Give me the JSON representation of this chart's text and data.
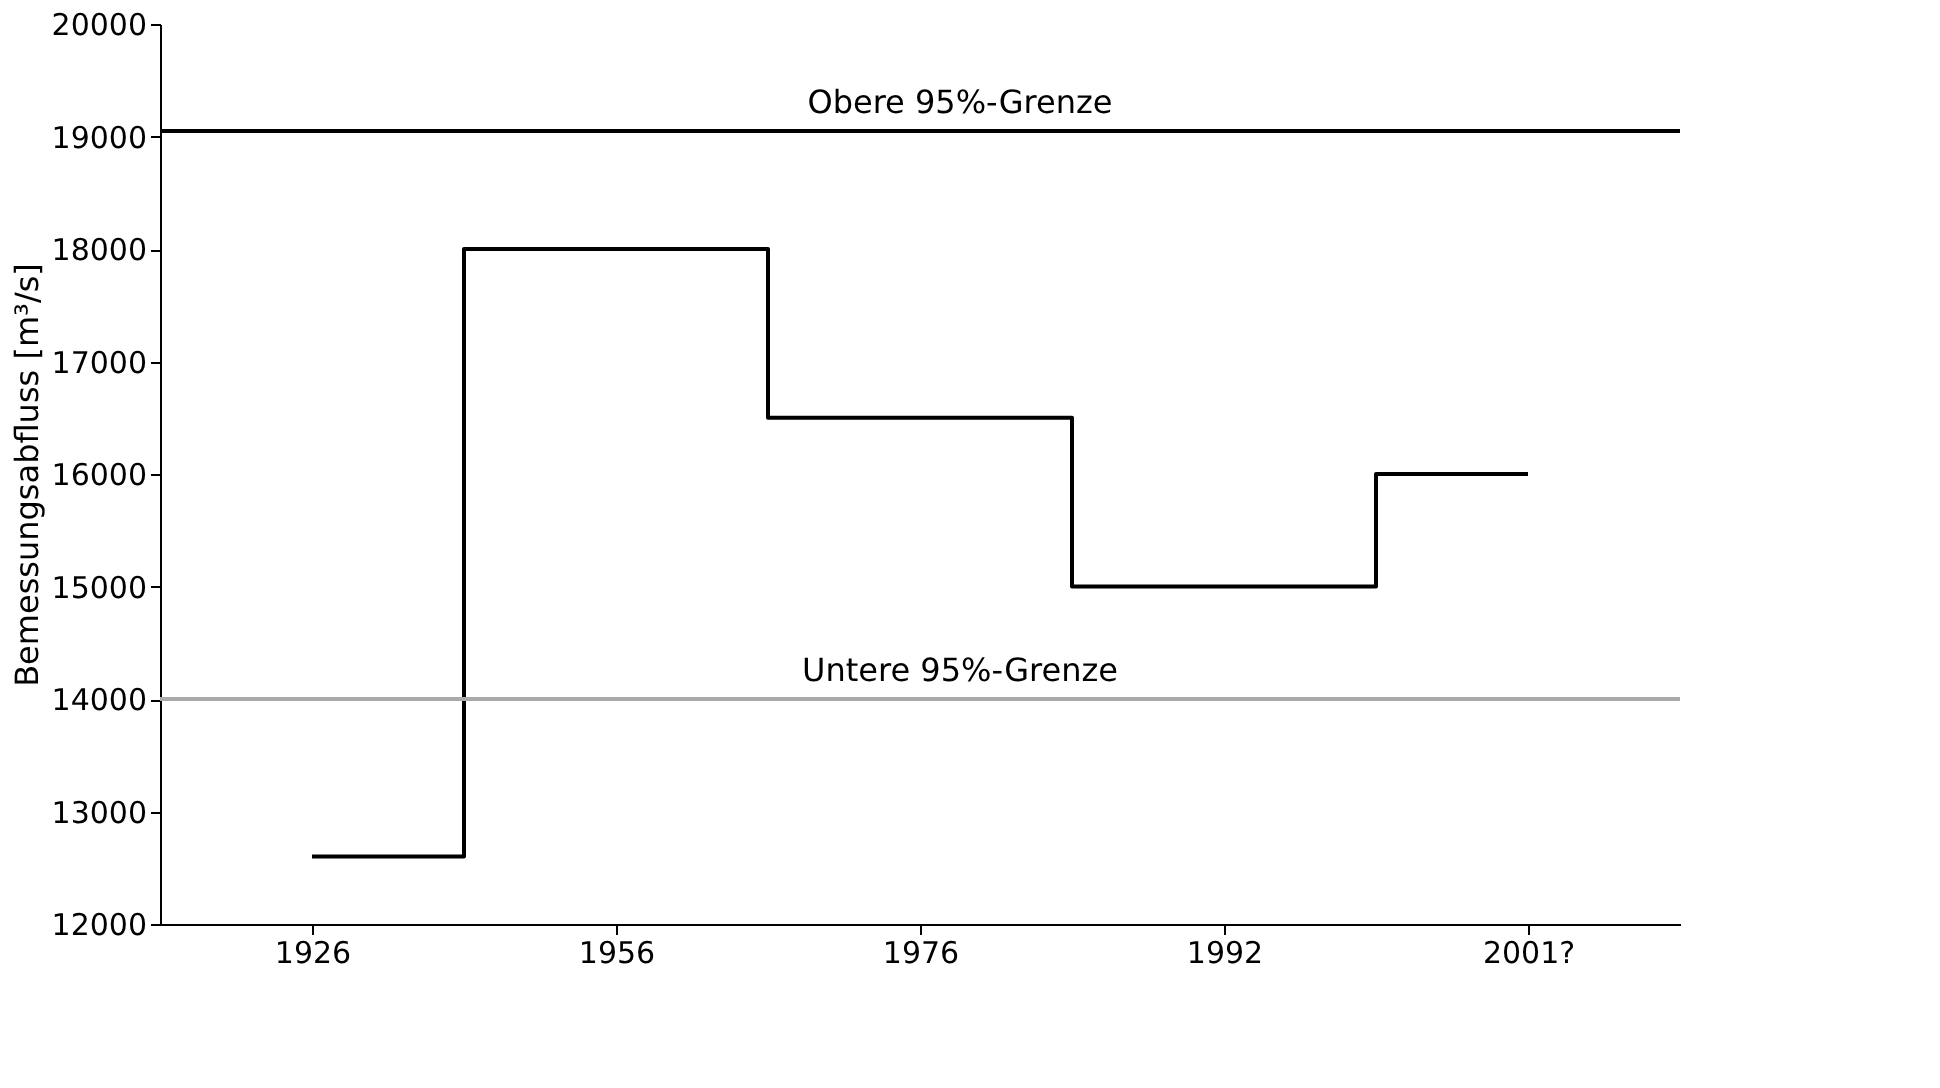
{
  "chart_data": {
    "type": "step",
    "ylabel": "Bemessungsabfluss [m³/s]",
    "categories": [
      "1926",
      "1956",
      "1976",
      "1992",
      "2001?"
    ],
    "series": [
      {
        "color": "#000000",
        "values": [
          12600,
          18000,
          16500,
          15000,
          16000
        ]
      }
    ],
    "ylim": [
      12000,
      20000
    ],
    "yticks": [
      12000,
      13000,
      14000,
      15000,
      16000,
      17000,
      18000,
      19000,
      20000
    ],
    "ref_lines": [
      {
        "axis": "y",
        "value": 19050,
        "label": "Obere 95%-Grenze",
        "color": "#000000"
      },
      {
        "axis": "y",
        "value": 14000,
        "label": "Untere 95%-Grenze",
        "color": "#aaaaaa"
      }
    ],
    "grid": false,
    "marker": "none"
  }
}
